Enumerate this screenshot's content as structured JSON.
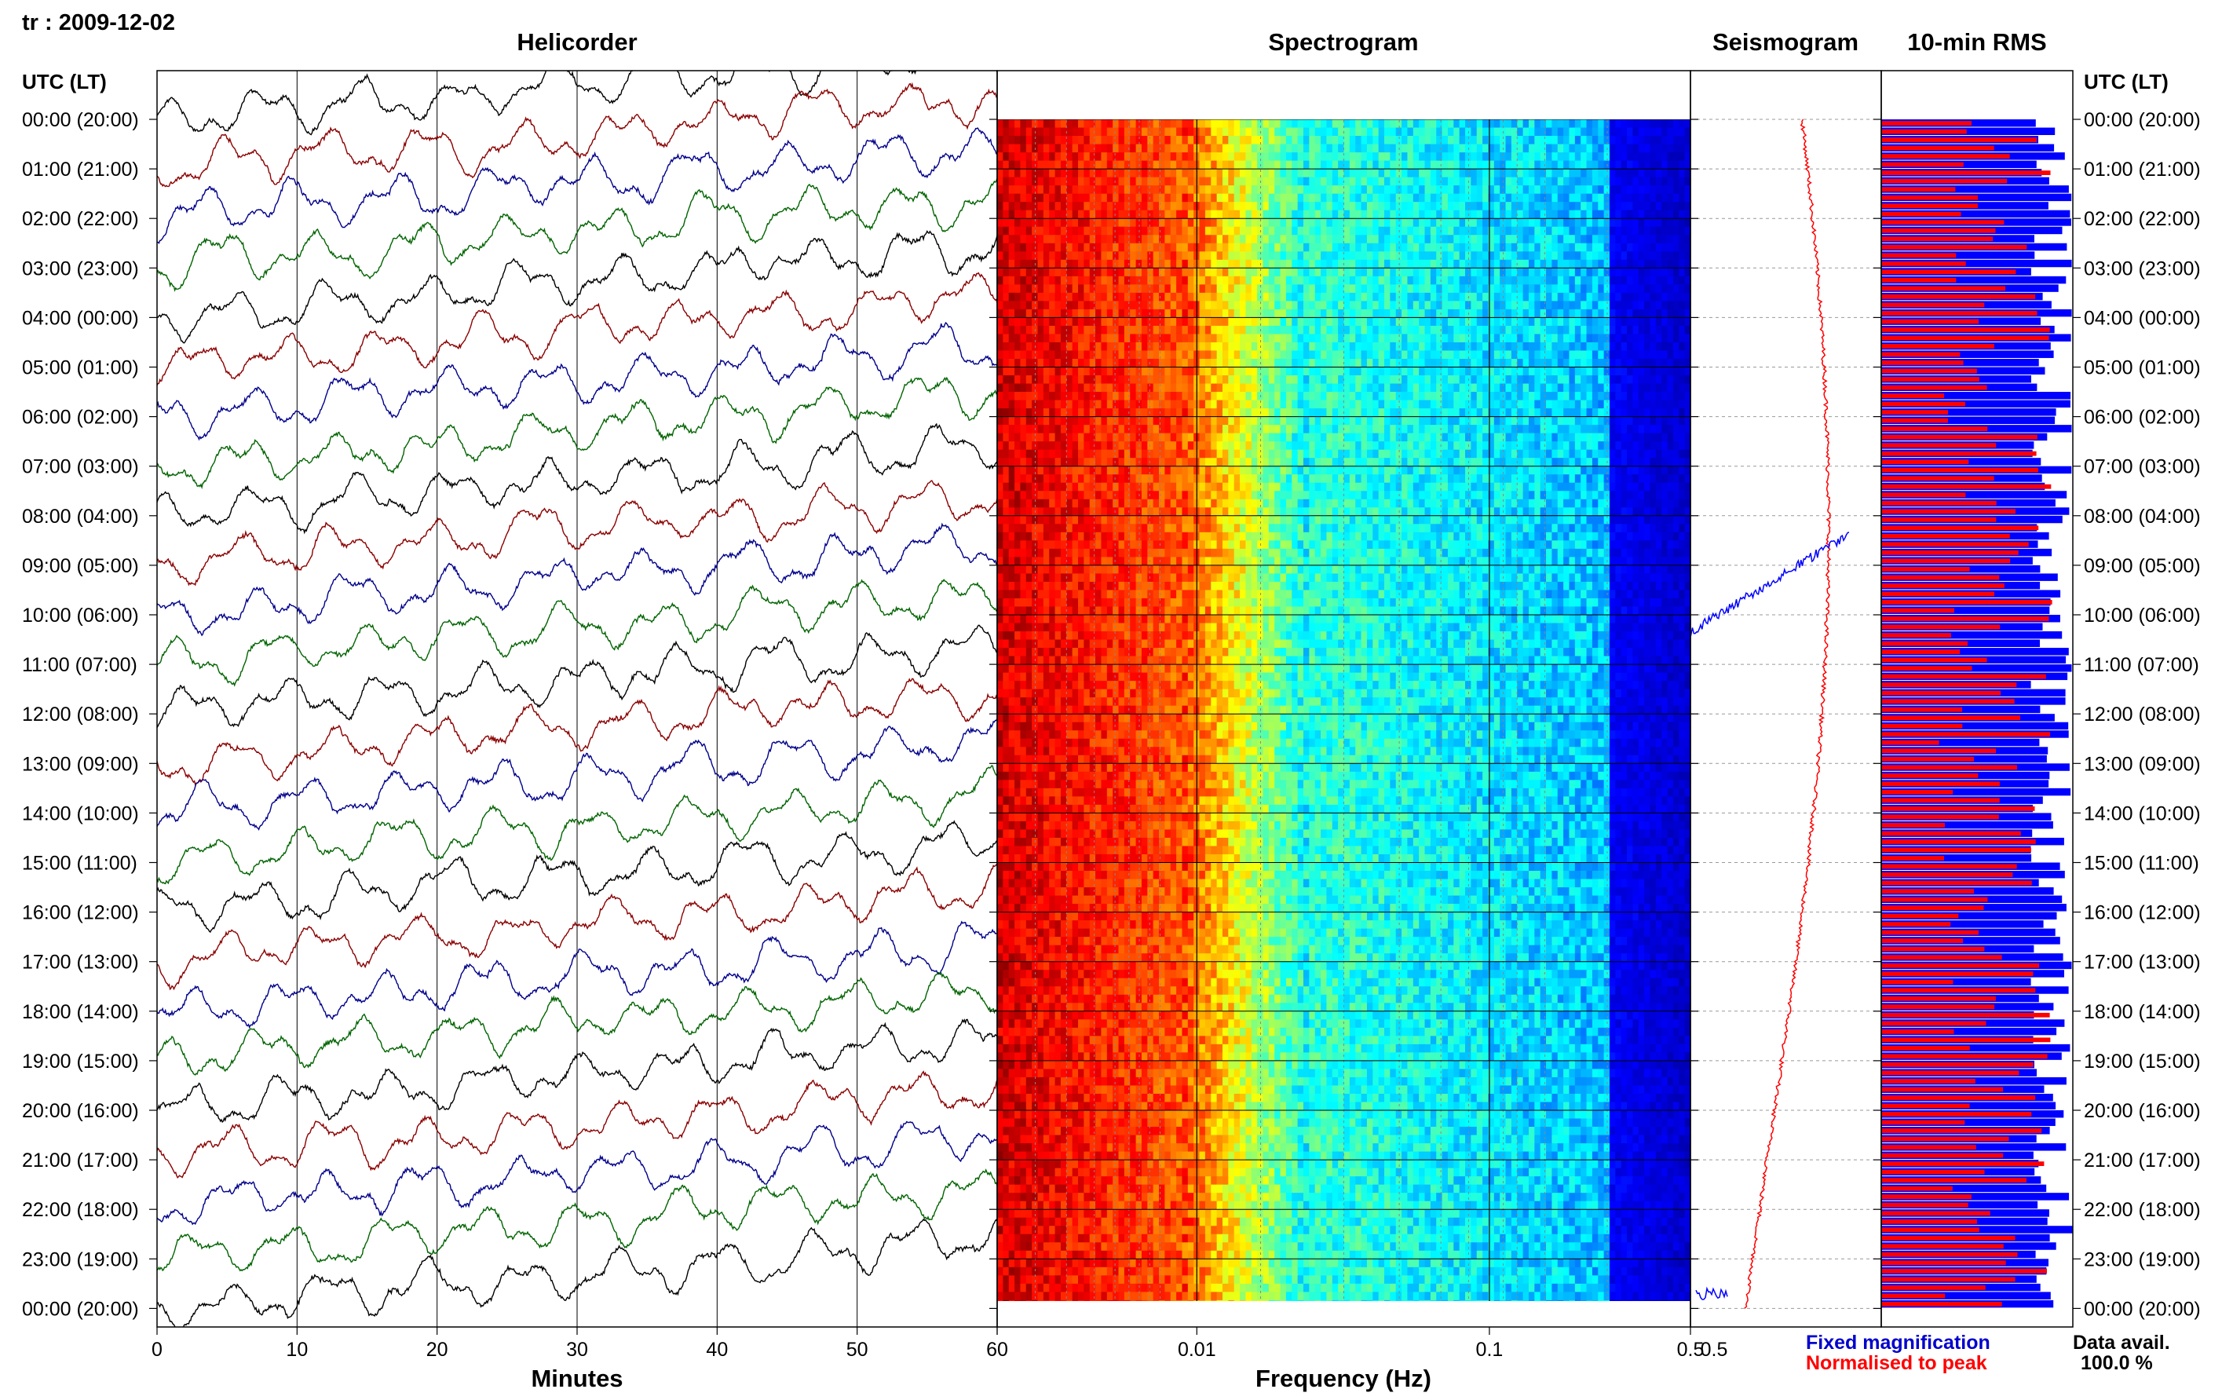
{
  "header": {
    "title": "tr : 2009-12-02"
  },
  "panels": {
    "helicorder": "Helicorder",
    "spectrogram": "Spectrogram",
    "seismogram": "Seismogram",
    "rms": "10-min RMS"
  },
  "axes": {
    "time_header_left": "UTC (LT)",
    "time_header_right": "UTC (LT)",
    "minutes_label": "Minutes",
    "frequency_label": "Frequency (Hz)"
  },
  "legend": {
    "fixed": "Fixed magnification",
    "normalised": "Normalised to peak",
    "fixed_color": "#0000cc",
    "normalised_color": "#ff0000"
  },
  "data_avail": {
    "label": "Data avail.",
    "value": "100.0 %"
  },
  "colors": {
    "trace_cycle": [
      "#000000",
      "#8b0000",
      "#00008b",
      "#006400"
    ],
    "rms_fixed": "#0000ff",
    "rms_normalised": "#ff0000"
  },
  "chart_data": [
    {
      "type": "line",
      "title": "Helicorder",
      "xlabel": "Minutes",
      "x_ticks": [
        "0",
        "10",
        "20",
        "30",
        "40",
        "50",
        "60"
      ],
      "xlim": [
        0,
        60
      ],
      "row_labels": [
        "00:00 (20:00)",
        "01:00 (21:00)",
        "02:00 (22:00)",
        "03:00 (23:00)",
        "04:00 (00:00)",
        "05:00 (01:00)",
        "06:00 (02:00)",
        "07:00 (03:00)",
        "08:00 (04:00)",
        "09:00 (05:00)",
        "10:00 (06:00)",
        "11:00 (07:00)",
        "12:00 (08:00)",
        "13:00 (09:00)",
        "14:00 (10:00)",
        "15:00 (11:00)",
        "16:00 (12:00)",
        "17:00 (13:00)",
        "18:00 (14:00)",
        "19:00 (15:00)",
        "20:00 (16:00)",
        "21:00 (17:00)",
        "22:00 (18:00)",
        "23:00 (19:00)",
        "00:00 (20:00)"
      ]
    },
    {
      "type": "heatmap",
      "title": "Spectrogram",
      "xlabel": "Frequency (Hz)",
      "x_scale": "log",
      "x_ticks": [
        "60",
        "0.01",
        "0.1",
        "0.5"
      ],
      "colormap": "jet"
    },
    {
      "type": "line",
      "title": "Seismogram",
      "x_ticks": [
        "0.5"
      ]
    },
    {
      "type": "bar",
      "title": "10-min RMS",
      "series": [
        {
          "name": "Fixed magnification"
        },
        {
          "name": "Normalised to peak"
        }
      ],
      "intervals": 144
    }
  ]
}
